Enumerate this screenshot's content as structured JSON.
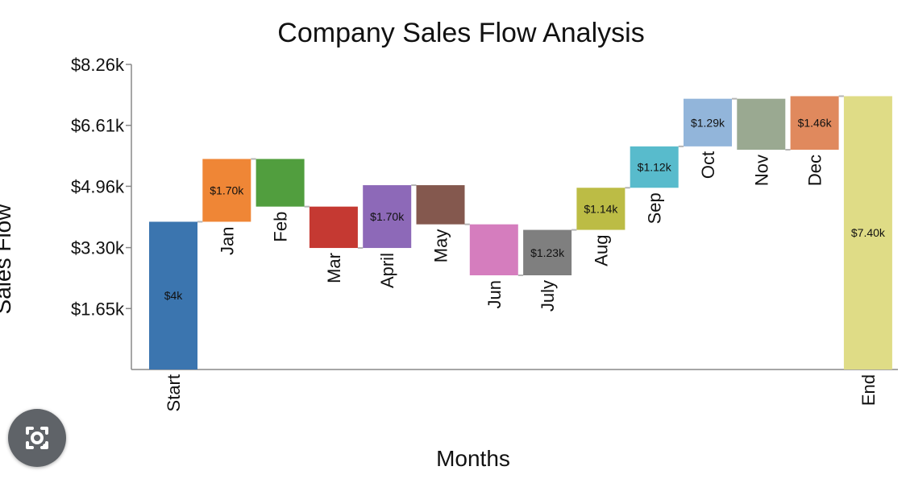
{
  "chart_data": {
    "type": "waterfall",
    "title": "Company Sales Flow Analysis",
    "xlabel": "Months",
    "ylabel": "Sales Flow",
    "ylim": [
      0,
      8.26
    ],
    "y_ticks": [
      "$8.26k",
      "$6.61k",
      "$4.96k",
      "$3.30k",
      "$1.65k"
    ],
    "y_tick_values": [
      8.26,
      6.61,
      4.96,
      3.3,
      1.65
    ],
    "units": "thousands of dollars",
    "steps": [
      {
        "category": "Start",
        "low": 0.0,
        "high": 4.0,
        "label": "$4k",
        "color": "#3b75af"
      },
      {
        "category": "Jan",
        "low": 4.0,
        "high": 5.7,
        "label": "$1.70k",
        "color": "#ef8636"
      },
      {
        "category": "Feb",
        "low": 4.41,
        "high": 5.7,
        "label": "",
        "color": "#519e3e"
      },
      {
        "category": "Mar",
        "low": 3.29,
        "high": 4.41,
        "label": "",
        "color": "#c53932"
      },
      {
        "category": "April",
        "low": 3.29,
        "high": 4.99,
        "label": "$1.70k",
        "color": "#8d69b8"
      },
      {
        "category": "May",
        "low": 3.93,
        "high": 4.99,
        "label": "",
        "color": "#84584e"
      },
      {
        "category": "Jun",
        "low": 2.55,
        "high": 3.93,
        "label": "",
        "color": "#d57dbe"
      },
      {
        "category": "July",
        "low": 2.55,
        "high": 3.78,
        "label": "$1.23k",
        "color": "#7f7f7f"
      },
      {
        "category": "Aug",
        "low": 3.78,
        "high": 4.92,
        "label": "$1.14k",
        "color": "#bcbc45"
      },
      {
        "category": "Sep",
        "low": 4.92,
        "high": 6.04,
        "label": "$1.12k",
        "color": "#58bbcc"
      },
      {
        "category": "Oct",
        "low": 6.04,
        "high": 7.33,
        "label": "$1.29k",
        "color": "#92b5da"
      },
      {
        "category": "Nov",
        "low": 5.95,
        "high": 7.33,
        "label": "",
        "color": "#9aa991"
      },
      {
        "category": "Dec",
        "low": 5.95,
        "high": 7.4,
        "label": "$1.46k",
        "color": "#e0895d"
      },
      {
        "category": "End",
        "low": 0.0,
        "high": 7.4,
        "label": "$7.40k",
        "color": "#dfdc86"
      }
    ],
    "legend": "none",
    "grid": false
  },
  "overlay": {
    "lens_icon": "google-lens-camera-icon",
    "lens_color": "#5f6368"
  }
}
